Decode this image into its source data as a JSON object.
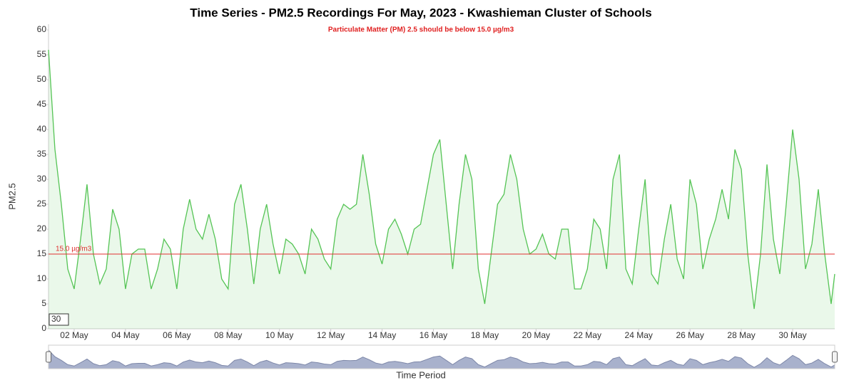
{
  "chart_data": {
    "type": "area",
    "title": "Time Series - PM2.5 Recordings For May, 2023 - Kwashieman Cluster of Schools",
    "subtitle": "Particulate Matter (PM) 2.5 should be below 15.0 µg/m3",
    "y_label": "PM2.5",
    "x_label": "Time Period",
    "badge": "30",
    "threshold": {
      "value": 15,
      "label": "15.0 µg/m3",
      "color": "#e03030"
    },
    "xlim": [
      1,
      31.64
    ],
    "ylim": [
      0,
      60
    ],
    "yticks": [
      0,
      5,
      10,
      15,
      20,
      25,
      30,
      35,
      40,
      45,
      50,
      55,
      60
    ],
    "xticks": [
      {
        "value": 2,
        "label": "02 May"
      },
      {
        "value": 4,
        "label": "04 May"
      },
      {
        "value": 6,
        "label": "06 May"
      },
      {
        "value": 8,
        "label": "08 May"
      },
      {
        "value": 10,
        "label": "10 May"
      },
      {
        "value": 12,
        "label": "12 May"
      },
      {
        "value": 14,
        "label": "14 May"
      },
      {
        "value": 16,
        "label": "16 May"
      },
      {
        "value": 18,
        "label": "18 May"
      },
      {
        "value": 20,
        "label": "20 May"
      },
      {
        "value": 22,
        "label": "22 May"
      },
      {
        "value": 24,
        "label": "24 May"
      },
      {
        "value": 26,
        "label": "26 May"
      },
      {
        "value": 28,
        "label": "28 May"
      },
      {
        "value": 30,
        "label": "30 May"
      }
    ],
    "series": [
      {
        "name": "PM2.5",
        "color": "#55c455",
        "x": [
          1,
          1.25,
          1.5,
          1.75,
          2,
          2.25,
          2.5,
          2.75,
          3,
          3.25,
          3.5,
          3.75,
          4,
          4.25,
          4.5,
          4.75,
          5,
          5.25,
          5.5,
          5.75,
          6,
          6.25,
          6.5,
          6.75,
          7,
          7.25,
          7.5,
          7.75,
          8,
          8.25,
          8.5,
          8.75,
          9,
          9.25,
          9.5,
          9.75,
          10,
          10.25,
          10.5,
          10.75,
          11,
          11.25,
          11.5,
          11.75,
          12,
          12.25,
          12.5,
          12.75,
          13,
          13.25,
          13.5,
          13.75,
          14,
          14.25,
          14.5,
          14.75,
          15,
          15.25,
          15.5,
          15.75,
          16,
          16.25,
          16.5,
          16.75,
          17,
          17.25,
          17.5,
          17.75,
          18,
          18.25,
          18.5,
          18.75,
          19,
          19.25,
          19.5,
          19.75,
          20,
          20.25,
          20.5,
          20.75,
          21,
          21.25,
          21.5,
          21.75,
          22,
          22.25,
          22.5,
          22.75,
          23,
          23.25,
          23.5,
          23.75,
          24,
          24.25,
          24.5,
          24.75,
          25,
          25.25,
          25.5,
          25.75,
          26,
          26.25,
          26.5,
          26.75,
          27,
          27.25,
          27.5,
          27.75,
          28,
          28.25,
          28.5,
          28.75,
          29,
          29.25,
          29.5,
          29.75,
          30,
          30.25,
          30.5,
          30.75,
          31,
          31.25,
          31.5,
          31.64
        ],
        "values": [
          56,
          36,
          25,
          12,
          8,
          18,
          29,
          15,
          9,
          12,
          24,
          20,
          8,
          15,
          16,
          16,
          8,
          12,
          18,
          16,
          8,
          20,
          26,
          20,
          18,
          23,
          18,
          10,
          8,
          25,
          29,
          20,
          9,
          20,
          25,
          17,
          11,
          18,
          17,
          15,
          11,
          20,
          18,
          14,
          12,
          22,
          25,
          24,
          25,
          35,
          27,
          17,
          13,
          20,
          22,
          19,
          15,
          20,
          21,
          28,
          35,
          38,
          25,
          12,
          25,
          35,
          30,
          12,
          5,
          15,
          25,
          27,
          35,
          30,
          20,
          15,
          16,
          19,
          15,
          14,
          20,
          20,
          8,
          8,
          12,
          22,
          20,
          12,
          30,
          35,
          12,
          9,
          20,
          30,
          11,
          9,
          18,
          25,
          14,
          10,
          30,
          25,
          12,
          18,
          22,
          28,
          22,
          36,
          32,
          15,
          4,
          15,
          33,
          18,
          11,
          25,
          40,
          30,
          12,
          17,
          28,
          15,
          5,
          11
        ]
      }
    ]
  }
}
